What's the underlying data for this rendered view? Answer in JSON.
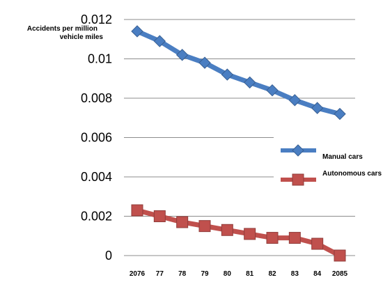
{
  "chart_data": {
    "type": "line",
    "title": "",
    "ylabel_lines": [
      "Accidents per million",
      "vehicle miles"
    ],
    "xlabel": "",
    "categories": [
      "2076",
      "77",
      "78",
      "79",
      "80",
      "81",
      "82",
      "83",
      "84",
      "2085"
    ],
    "yticks": [
      "0",
      "0.002",
      "0.004",
      "0.006",
      "0.008",
      "0.01",
      "0.012"
    ],
    "ylim": [
      0,
      0.012
    ],
    "grid": "horizontal",
    "legend_position": "right",
    "series": [
      {
        "name": "Manual cars",
        "color": "#4a7ec2",
        "marker": "diamond",
        "values": [
          0.0114,
          0.0109,
          0.0102,
          0.0098,
          0.0092,
          0.0088,
          0.0084,
          0.0079,
          0.0075,
          0.0072
        ]
      },
      {
        "name": "Autonomous cars",
        "color": "#c0504d",
        "marker": "square",
        "values": [
          0.0023,
          0.002,
          0.0017,
          0.0015,
          0.0013,
          0.0011,
          0.0009,
          0.0009,
          0.0006,
          0.0
        ]
      }
    ]
  }
}
